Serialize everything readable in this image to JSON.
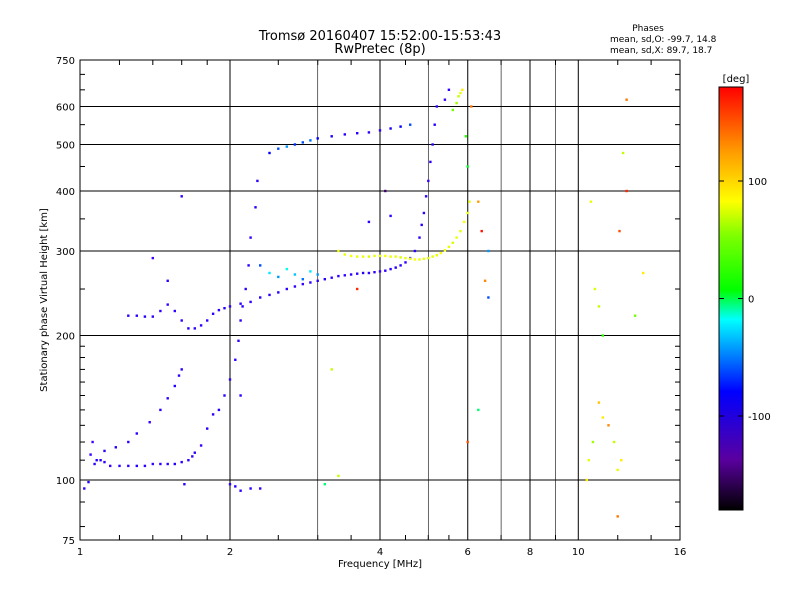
{
  "chart_data": {
    "type": "scatter",
    "title": "Tromsø 20160407 15:52:00-15:53:43",
    "subtitle": "RwPretec (8p)",
    "xlabel": "Frequency [MHz]",
    "ylabel": "Stationary phase Virtual Height [km]",
    "x_scale": "log",
    "y_scale": "log",
    "xlim": [
      1,
      16
    ],
    "ylim": [
      75,
      750
    ],
    "x_ticks": [
      1,
      2,
      4,
      6,
      8,
      10,
      16
    ],
    "x_minor_gridlines": [
      3,
      5,
      7,
      9
    ],
    "y_ticks": [
      75,
      100,
      200,
      300,
      400,
      500,
      600,
      750
    ],
    "grid": true,
    "phase_box": {
      "heading": "Phases",
      "line_o": "mean, sd,O: -99.7, 14.8",
      "line_x": "mean, sd,X:  89.7, 18.7"
    },
    "colorbar": {
      "unit": "[deg]",
      "range": [
        -180,
        180
      ],
      "ticks": [
        100,
        0,
        -100
      ],
      "tick_labels": [
        "100",
        "0",
        "-100"
      ]
    },
    "series": [
      {
        "values": [
          [
            1.02,
            96,
            -100
          ],
          [
            1.04,
            99,
            -95
          ],
          [
            1.05,
            113,
            -105
          ],
          [
            1.06,
            120,
            -110
          ],
          [
            1.07,
            108,
            -100
          ],
          [
            1.08,
            110,
            -95
          ],
          [
            1.1,
            110,
            -100
          ],
          [
            1.12,
            109,
            -100
          ],
          [
            1.15,
            107,
            -105
          ],
          [
            1.2,
            107,
            -100
          ],
          [
            1.25,
            107,
            -100
          ],
          [
            1.3,
            107,
            -95
          ],
          [
            1.35,
            107,
            -100
          ],
          [
            1.4,
            108,
            -105
          ],
          [
            1.45,
            108,
            -100
          ],
          [
            1.5,
            108,
            -100
          ],
          [
            1.55,
            108,
            -95
          ],
          [
            1.6,
            109,
            -100
          ],
          [
            1.65,
            110,
            -100
          ],
          [
            1.68,
            112,
            -105
          ],
          [
            1.7,
            114,
            -100
          ],
          [
            1.12,
            115,
            -100
          ],
          [
            1.18,
            117,
            -95
          ],
          [
            1.25,
            120,
            -100
          ],
          [
            1.3,
            125,
            -100
          ],
          [
            1.38,
            132,
            -105
          ],
          [
            1.45,
            140,
            -100
          ],
          [
            1.5,
            148,
            -100
          ],
          [
            1.55,
            157,
            -95
          ],
          [
            1.58,
            165,
            -100
          ],
          [
            1.62,
            98,
            -100
          ],
          [
            1.6,
            170,
            -100
          ],
          [
            1.75,
            118,
            -105
          ],
          [
            1.8,
            128,
            -100
          ],
          [
            1.85,
            137,
            -100
          ],
          [
            1.9,
            140,
            -95
          ],
          [
            1.95,
            150,
            -100
          ],
          [
            2.0,
            162,
            -100
          ],
          [
            2.05,
            178,
            -105
          ],
          [
            2.08,
            195,
            -100
          ],
          [
            2.1,
            215,
            -100
          ],
          [
            2.12,
            230,
            -95
          ],
          [
            2.15,
            250,
            -100
          ],
          [
            2.18,
            280,
            -100
          ],
          [
            2.2,
            320,
            -105
          ],
          [
            2.25,
            370,
            -100
          ],
          [
            2.27,
            420,
            -100
          ],
          [
            2.0,
            98,
            -100
          ],
          [
            2.05,
            97,
            -95
          ],
          [
            2.1,
            95,
            -100
          ],
          [
            2.2,
            96,
            -100
          ],
          [
            2.3,
            96,
            -105
          ],
          [
            1.25,
            220,
            -100
          ],
          [
            1.3,
            220,
            -100
          ],
          [
            1.35,
            219,
            -95
          ],
          [
            1.4,
            219,
            -100
          ],
          [
            1.45,
            225,
            -100
          ],
          [
            1.5,
            232,
            -105
          ],
          [
            1.55,
            225,
            -100
          ],
          [
            1.6,
            215,
            -100
          ],
          [
            1.65,
            207,
            -95
          ],
          [
            1.7,
            207,
            -100
          ],
          [
            1.75,
            210,
            -100
          ],
          [
            1.8,
            215,
            -105
          ],
          [
            1.85,
            222,
            -100
          ],
          [
            1.9,
            226,
            -100
          ],
          [
            1.95,
            228,
            -95
          ],
          [
            2.0,
            230,
            -100
          ],
          [
            2.1,
            233,
            -100
          ],
          [
            2.2,
            235,
            -105
          ],
          [
            2.3,
            240,
            -100
          ],
          [
            2.4,
            243,
            -100
          ],
          [
            2.5,
            246,
            -95
          ],
          [
            2.6,
            250,
            -100
          ],
          [
            2.7,
            253,
            -100
          ],
          [
            2.8,
            256,
            -105
          ],
          [
            2.9,
            258,
            -100
          ],
          [
            3.0,
            260,
            -100
          ],
          [
            3.1,
            262,
            -95
          ],
          [
            3.2,
            264,
            -100
          ],
          [
            3.3,
            266,
            -100
          ],
          [
            3.4,
            267,
            -105
          ],
          [
            3.5,
            268,
            -100
          ],
          [
            3.6,
            269,
            -100
          ],
          [
            3.7,
            270,
            -95
          ],
          [
            3.8,
            270,
            -100
          ],
          [
            3.9,
            271,
            -100
          ],
          [
            4.0,
            272,
            -105
          ],
          [
            4.1,
            273,
            -100
          ],
          [
            4.2,
            275,
            -100
          ],
          [
            4.3,
            277,
            -95
          ],
          [
            4.4,
            280,
            -100
          ],
          [
            4.5,
            284,
            -100
          ],
          [
            4.6,
            290,
            -105
          ],
          [
            4.7,
            300,
            -100
          ],
          [
            4.8,
            320,
            -100
          ],
          [
            4.85,
            340,
            -95
          ],
          [
            4.9,
            360,
            -100
          ],
          [
            4.95,
            390,
            -100
          ],
          [
            5.0,
            420,
            -105
          ],
          [
            5.05,
            460,
            -100
          ],
          [
            5.1,
            500,
            -100
          ],
          [
            5.15,
            550,
            -95
          ],
          [
            5.2,
            600,
            -100
          ],
          [
            2.1,
            150,
            -100
          ],
          [
            2.3,
            280,
            -60
          ],
          [
            2.4,
            270,
            -20
          ],
          [
            2.5,
            265,
            -40
          ],
          [
            2.6,
            275,
            -10
          ],
          [
            2.7,
            268,
            -30
          ],
          [
            2.8,
            262,
            -50
          ],
          [
            2.9,
            272,
            -20
          ],
          [
            3.0,
            268,
            -40
          ],
          [
            2.4,
            480,
            -80
          ],
          [
            2.5,
            490,
            -60
          ],
          [
            2.6,
            495,
            -40
          ],
          [
            2.7,
            500,
            -70
          ],
          [
            2.8,
            505,
            -60
          ],
          [
            2.9,
            510,
            -50
          ],
          [
            3.0,
            515,
            -80
          ],
          [
            3.2,
            520,
            -90
          ],
          [
            3.4,
            525,
            -100
          ],
          [
            3.6,
            528,
            -95
          ],
          [
            3.8,
            530,
            -100
          ],
          [
            4.0,
            535,
            -100
          ],
          [
            4.2,
            540,
            -90
          ],
          [
            4.4,
            545,
            -80
          ],
          [
            4.6,
            550,
            -60
          ],
          [
            1.6,
            390,
            -100
          ],
          [
            1.4,
            290,
            -110
          ],
          [
            1.5,
            260,
            -100
          ],
          [
            4.1,
            400,
            -150
          ],
          [
            3.6,
            250,
            170
          ],
          [
            3.8,
            345,
            -100
          ],
          [
            4.2,
            355,
            -100
          ],
          [
            5.4,
            620,
            -105
          ],
          [
            5.5,
            650,
            -100
          ]
        ]
      },
      {
        "values": [
          [
            3.3,
            300,
            110
          ],
          [
            3.4,
            295,
            110
          ],
          [
            3.5,
            293,
            115
          ],
          [
            3.6,
            292,
            110
          ],
          [
            3.7,
            292,
            110
          ],
          [
            3.8,
            292,
            105
          ],
          [
            3.9,
            293,
            110
          ],
          [
            4.0,
            293,
            110
          ],
          [
            4.1,
            293,
            115
          ],
          [
            4.2,
            292,
            110
          ],
          [
            4.3,
            292,
            110
          ],
          [
            4.4,
            291,
            105
          ],
          [
            4.5,
            290,
            110
          ],
          [
            4.6,
            289,
            110
          ],
          [
            4.7,
            288,
            115
          ],
          [
            4.8,
            288,
            110
          ],
          [
            4.9,
            289,
            110
          ],
          [
            5.0,
            290,
            105
          ],
          [
            5.1,
            292,
            110
          ],
          [
            5.2,
            294,
            110
          ],
          [
            5.3,
            297,
            115
          ],
          [
            5.4,
            301,
            110
          ],
          [
            5.5,
            306,
            110
          ],
          [
            5.6,
            312,
            105
          ],
          [
            5.7,
            320,
            110
          ],
          [
            5.8,
            330,
            110
          ],
          [
            5.9,
            345,
            115
          ],
          [
            6.0,
            360,
            110
          ],
          [
            6.05,
            380,
            110
          ],
          [
            5.6,
            590,
            80
          ],
          [
            5.7,
            610,
            90
          ],
          [
            5.75,
            630,
            100
          ],
          [
            5.8,
            640,
            110
          ],
          [
            5.85,
            650,
            120
          ],
          [
            5.95,
            520,
            60
          ],
          [
            6.0,
            450,
            40
          ],
          [
            6.1,
            600,
            150
          ],
          [
            6.3,
            380,
            140
          ],
          [
            6.4,
            330,
            175
          ],
          [
            6.5,
            260,
            145
          ],
          [
            6.6,
            240,
            -60
          ],
          [
            6.0,
            120,
            160
          ],
          [
            6.3,
            140,
            20
          ],
          [
            6.6,
            300,
            -40
          ],
          [
            10.4,
            100,
            120
          ],
          [
            10.5,
            110,
            110
          ],
          [
            10.7,
            120,
            90
          ],
          [
            11.0,
            145,
            130
          ],
          [
            11.2,
            135,
            120
          ],
          [
            11.5,
            130,
            145
          ],
          [
            11.8,
            120,
            100
          ],
          [
            12.0,
            105,
            110
          ],
          [
            12.2,
            110,
            120
          ],
          [
            12.0,
            84,
            150
          ],
          [
            12.5,
            620,
            150
          ],
          [
            10.6,
            380,
            110
          ],
          [
            10.8,
            250,
            105
          ],
          [
            11.0,
            230,
            100
          ],
          [
            11.2,
            200,
            60
          ],
          [
            12.1,
            330,
            160
          ],
          [
            12.3,
            480,
            100
          ],
          [
            12.5,
            400,
            170
          ],
          [
            13.0,
            220,
            80
          ],
          [
            13.5,
            270,
            120
          ],
          [
            3.2,
            170,
            100
          ],
          [
            3.1,
            98,
            20
          ],
          [
            3.3,
            102,
            100
          ]
        ]
      }
    ]
  }
}
